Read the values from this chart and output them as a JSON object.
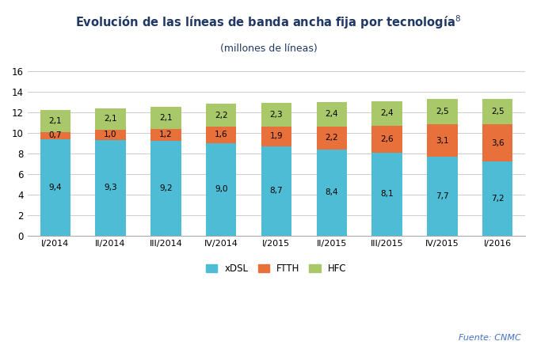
{
  "title_line1": "Evolución de las líneas de banda ancha fija por tecnología",
  "title_superscript": "8",
  "title_line2": "(millones de líneas)",
  "categories": [
    "I/2014",
    "II/2014",
    "III/2014",
    "IV/2014",
    "I/2015",
    "II/2015",
    "III/2015",
    "IV/2015",
    "I/2016"
  ],
  "xDSL": [
    9.4,
    9.3,
    9.2,
    9.0,
    8.7,
    8.4,
    8.1,
    7.7,
    7.2
  ],
  "FTTH": [
    0.7,
    1.0,
    1.2,
    1.6,
    1.9,
    2.2,
    2.6,
    3.1,
    3.6
  ],
  "HFC": [
    2.1,
    2.1,
    2.1,
    2.2,
    2.3,
    2.4,
    2.4,
    2.5,
    2.5
  ],
  "xDSL_labels": [
    "9,4",
    "9,3",
    "9,2",
    "9,0",
    "8,7",
    "8,4",
    "8,1",
    "7,7",
    "7,2"
  ],
  "FTTH_labels": [
    "0,7",
    "1,0",
    "1,2",
    "1,6",
    "1,9",
    "2,2",
    "2,6",
    "3,1",
    "3,6"
  ],
  "HFC_labels": [
    "2,1",
    "2,1",
    "2,1",
    "2,2",
    "2,3",
    "2,4",
    "2,4",
    "2,5",
    "2,5"
  ],
  "color_xDSL": "#4DBCD4",
  "color_FTTH": "#E8703A",
  "color_HFC": "#A8C86A",
  "ylim": [
    0,
    16
  ],
  "yticks": [
    0,
    2,
    4,
    6,
    8,
    10,
    12,
    14,
    16
  ],
  "title_color": "#1F3864",
  "subtitle_color": "#1F3864",
  "source_text": "Fuente: CNMC",
  "source_color": "#4472C4",
  "background_color": "#FFFFFF",
  "grid_color": "#CCCCCC",
  "bar_width": 0.55
}
